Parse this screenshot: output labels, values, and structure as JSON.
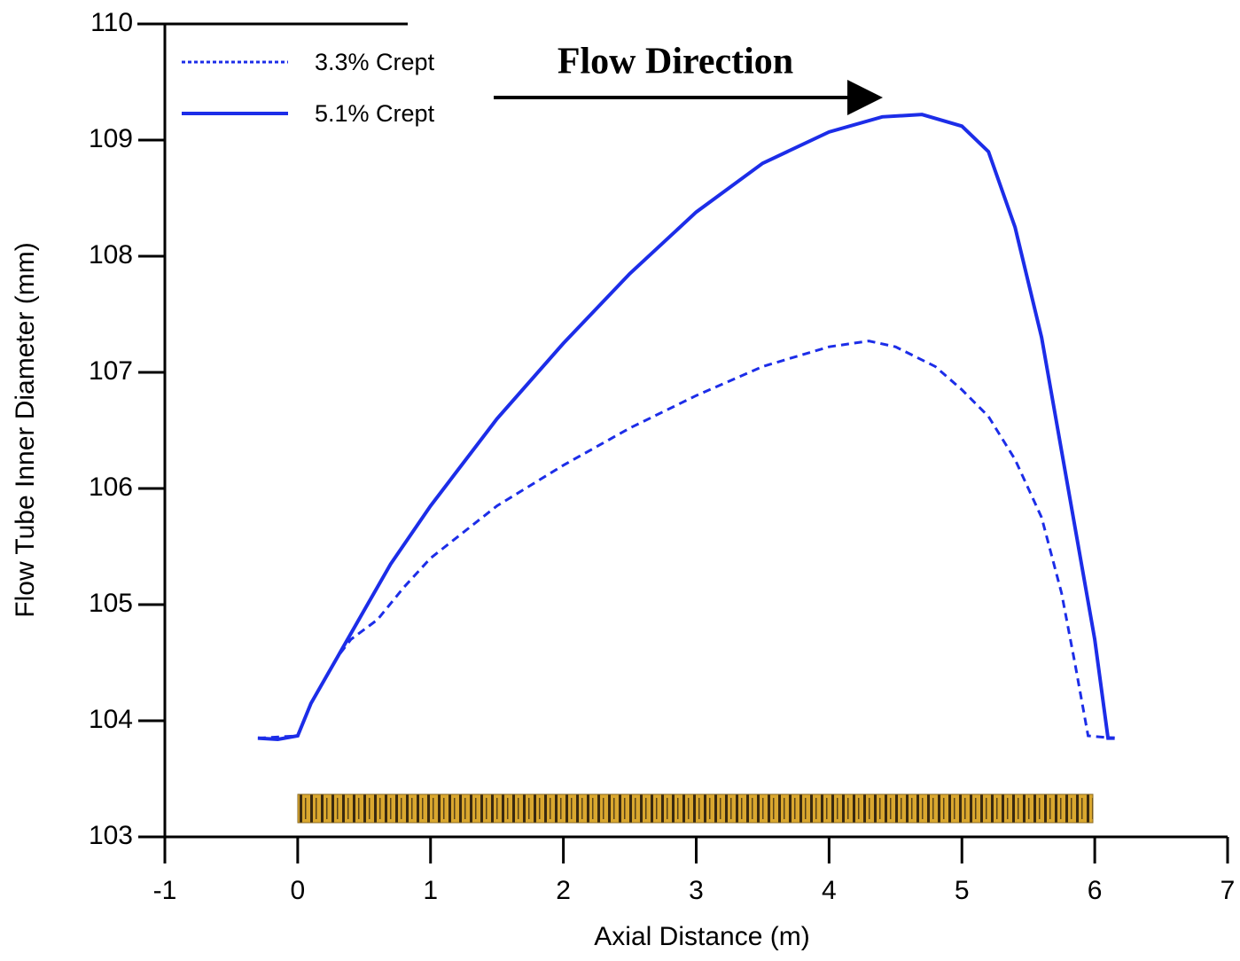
{
  "chart_data": {
    "type": "line",
    "xlabel": "Axial Distance (m)",
    "ylabel": "Flow Tube Inner Diameter (mm)",
    "annotation": "Flow Direction",
    "xlim": [
      -1,
      7
    ],
    "ylim": [
      103,
      110
    ],
    "xticks": [
      -1,
      0,
      1,
      2,
      3,
      4,
      5,
      6,
      7
    ],
    "yticks": [
      103,
      104,
      105,
      106,
      107,
      108,
      109,
      110
    ],
    "legend": "upper left",
    "series": [
      {
        "name": "3.3% Crept",
        "color": "#1c2de8",
        "style": "dashed",
        "x": [
          -0.3,
          0,
          0.1,
          0.3,
          0.4,
          0.6,
          0.8,
          1.0,
          1.5,
          2.0,
          2.5,
          3.0,
          3.5,
          4.0,
          4.3,
          4.5,
          4.8,
          5.0,
          5.2,
          5.4,
          5.6,
          5.75,
          5.85,
          5.95,
          6.15
        ],
        "values": [
          103.85,
          103.87,
          104.15,
          104.55,
          104.7,
          104.87,
          105.15,
          105.4,
          105.85,
          106.2,
          106.52,
          106.8,
          107.05,
          107.22,
          107.27,
          107.22,
          107.05,
          106.85,
          106.62,
          106.25,
          105.75,
          105.1,
          104.5,
          103.87,
          103.85
        ]
      },
      {
        "name": "5.1% Crept",
        "color": "#1c2de8",
        "style": "solid",
        "x": [
          -0.3,
          -0.15,
          0,
          0.1,
          0.3,
          0.5,
          0.7,
          1.0,
          1.5,
          2.0,
          2.5,
          3.0,
          3.5,
          4.0,
          4.4,
          4.7,
          5.0,
          5.2,
          5.4,
          5.6,
          5.8,
          6.0,
          6.1,
          6.15
        ],
        "values": [
          103.85,
          103.84,
          103.87,
          104.15,
          104.55,
          104.95,
          105.35,
          105.85,
          106.6,
          107.25,
          107.85,
          108.38,
          108.8,
          109.07,
          109.2,
          109.22,
          109.12,
          108.9,
          108.25,
          107.3,
          106.0,
          104.7,
          103.85,
          103.85
        ]
      }
    ]
  }
}
